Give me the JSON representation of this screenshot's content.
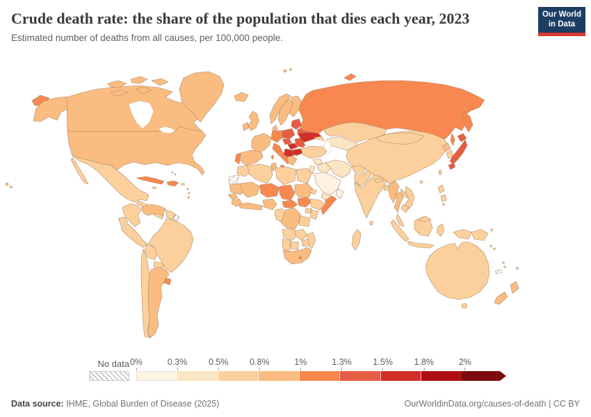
{
  "header": {
    "title": "Crude death rate: the share of the population that dies each year, 2023",
    "subtitle": "Estimated number of deaths from all causes, per 100,000 people.",
    "logo": {
      "line1": "Our World",
      "line2": "in Data",
      "bg_color": "#1d3d63",
      "accent_color": "#d93b33"
    }
  },
  "legend": {
    "no_data_label": "No data",
    "tick_labels": [
      "0%",
      "0.3%",
      "0.5%",
      "0.8%",
      "1%",
      "1.3%",
      "1.5%",
      "1.8%",
      "2%"
    ]
  },
  "footer": {
    "source_label": "Data source:",
    "source_text": " IHME, Global Burden of Disease (2025)",
    "link_text": "OurWorldinData.org/causes-of-death",
    "separator": " | ",
    "license_text": "CC BY"
  },
  "chart_data": {
    "type": "choropleth_map",
    "title": "Crude death rate: the share of the population that dies each year",
    "year": "2023",
    "unit": "%",
    "projection": "world",
    "bins": [
      {
        "label": "0%–0.3%",
        "color": "#fdf2e4"
      },
      {
        "label": "0.3%–0.5%",
        "color": "#fae5c4"
      },
      {
        "label": "0.5%–0.8%",
        "color": "#fcd09c"
      },
      {
        "label": "0.8%–1%",
        "color": "#fabc80"
      },
      {
        "label": "1%–1.3%",
        "color": "#f8884f"
      },
      {
        "label": "1.3%–1.5%",
        "color": "#e65d45"
      },
      {
        "label": "1.5%–1.8%",
        "color": "#d22e28"
      },
      {
        "label": "1.8%–2%",
        "color": "#ad0e13"
      },
      {
        "label": "2%+",
        "color": "#7c0a0e"
      }
    ],
    "no_data_color": "hatched",
    "countries": {
      "russia": 4,
      "united-states": 3,
      "canada": 3,
      "greenland": 3,
      "mexico": 2,
      "central-america": 2,
      "cuba": 4,
      "jamaica": 2,
      "haiti": 4,
      "puerto-rico": 2,
      "lesser-antilles": 2,
      "bahamas": 2,
      "colombia": 2,
      "venezuela": 3,
      "guyana": 2,
      "french-guiana": null,
      "ecuador": 2,
      "peru": 2,
      "brazil": 2,
      "bolivia": 2,
      "paraguay": 2,
      "chile": 2,
      "argentina": 3,
      "uruguay": 4,
      "iceland": 3,
      "united-kingdom": 3,
      "ireland": 3,
      "norway": 3,
      "sweden": 3,
      "finland": 3,
      "denmark": 3,
      "baltic-states": 5,
      "belarus": 5,
      "poland": 5,
      "germany": 4,
      "france": 3,
      "portugal": 4,
      "spain": 3,
      "italy": 4,
      "czechia": 5,
      "hungary": 6,
      "romania": 5,
      "ukraine": 6,
      "serbia": 6,
      "bulgaria": 6,
      "greece": 3,
      "turkey": 2,
      "syria": 1,
      "iraq": 1,
      "israel-jordan": 1,
      "saudi-arabia": 0,
      "yemen": 1,
      "oman": 0,
      "iran": 1,
      "afghanistan": 2,
      "pakistan": 2,
      "india": 2,
      "nepal": 2,
      "bangladesh": 2,
      "sri-lanka": 2,
      "myanmar": 3,
      "thailand": 3,
      "laos": 2,
      "vietnam": 2,
      "cambodia": 2,
      "malaysia": 2,
      "china": 2,
      "mongolia": 2,
      "north-korea": 3,
      "south-korea": 2,
      "japan": 5,
      "taiwan": 2,
      "philippines": 2,
      "indonesia": 2,
      "papua-new-guinea": 2,
      "solomon-islands": 2,
      "vanuatu": 3,
      "fiji": 3,
      "new-caledonia": null,
      "australia": 2,
      "new-zealand": 3,
      "kazakhstan": 2,
      "central-asia": 1,
      "caucasus": 2,
      "morocco": 2,
      "western-sahara": null,
      "algeria": 2,
      "tunisia": 3,
      "libya": 2,
      "egypt": 2,
      "mauritania": 3,
      "mali": 3,
      "niger": 4,
      "chad": 4,
      "sudan": 3,
      "eritrea": 2,
      "senegal": 3,
      "guinea": 3,
      "gulf-of-guinea": 3,
      "nigeria": 3,
      "cameroon-congo": 2,
      "central-african-republic": 4,
      "south-sudan": 4,
      "ethiopia": 2,
      "somalia": 4,
      "uganda": 2,
      "kenya": 2,
      "drc": 3,
      "tanzania": 2,
      "angola": 2,
      "zambia": 2,
      "mozambique": 2,
      "zimbabwe": 2,
      "namibia": 2,
      "botswana": 2,
      "south-africa": 3,
      "lesotho": 4,
      "madagascar": 2
    }
  }
}
